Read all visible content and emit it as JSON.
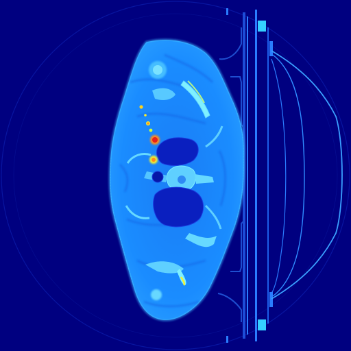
{
  "viewer": {
    "colormap": "jet",
    "colors": {
      "background": "#000080",
      "fov_ring": "#0a1aa8",
      "soft_tissue": "#1a8cff",
      "soft_tissue_dark": "#1466e6",
      "skin_edge": "#3fb4ff",
      "bone": "#66d9ff",
      "bone_bright": "#7ff0ff",
      "lung": "#0a1fbf",
      "lung_dark": "#0616a8",
      "hot_yellow": "#f7ef2a",
      "hot_orange": "#ff8c1a",
      "hot_red": "#e8201a",
      "table_line": "#2a7dff",
      "table_bright": "#35d0ff",
      "coil_line": "#3aa0ff"
    }
  }
}
